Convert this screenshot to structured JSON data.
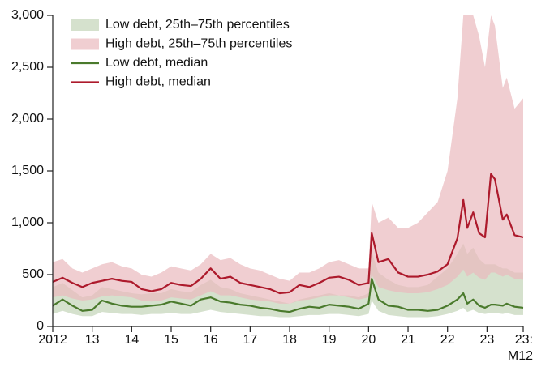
{
  "chart_data": {
    "type": "line",
    "x": [
      2012,
      2012.25,
      2012.5,
      2012.75,
      2013,
      2013.25,
      2013.5,
      2013.75,
      2014,
      2014.25,
      2014.5,
      2014.75,
      2015,
      2015.25,
      2015.5,
      2015.75,
      2016,
      2016.25,
      2016.5,
      2016.75,
      2017,
      2017.25,
      2017.5,
      2017.75,
      2018,
      2018.25,
      2018.5,
      2018.75,
      2019,
      2019.25,
      2019.5,
      2019.75,
      2020,
      2020.08,
      2020.25,
      2020.5,
      2020.75,
      2021,
      2021.25,
      2021.5,
      2021.75,
      2022,
      2022.25,
      2022.4,
      2022.5,
      2022.65,
      2022.8,
      2022.95,
      2023.1,
      2023.2,
      2023.4,
      2023.5,
      2023.7,
      2023.917
    ],
    "xlim": [
      2012,
      2023.917
    ],
    "xticks": [
      {
        "value": 2012,
        "label": "2012"
      },
      {
        "value": 2013,
        "label": "13"
      },
      {
        "value": 2014,
        "label": "14"
      },
      {
        "value": 2015,
        "label": "15"
      },
      {
        "value": 2016,
        "label": "16"
      },
      {
        "value": 2017,
        "label": "17"
      },
      {
        "value": 2018,
        "label": "18"
      },
      {
        "value": 2019,
        "label": "19"
      },
      {
        "value": 2020,
        "label": "20"
      },
      {
        "value": 2021,
        "label": "21"
      },
      {
        "value": 2022,
        "label": "22"
      },
      {
        "value": 2023,
        "label": "23"
      },
      {
        "value": 2023.917,
        "label": "23:\nM12"
      }
    ],
    "ylim": [
      0,
      3000
    ],
    "yticks": [
      0,
      {
        "value": 500,
        "label": "500"
      },
      {
        "value": 1000,
        "label": "1,000"
      },
      {
        "value": 1500,
        "label": "1,500"
      },
      {
        "value": 2000,
        "label": "2,000"
      },
      {
        "value": 2500,
        "label": "2,500"
      },
      {
        "value": 3000,
        "label": "3,000"
      }
    ],
    "legend": "upper left",
    "series": [
      {
        "name": "Low debt, 25th–75th percentiles",
        "type": "band",
        "color": "#d5e1cd",
        "lower": [
          120,
          150,
          120,
          100,
          100,
          140,
          130,
          120,
          120,
          110,
          120,
          120,
          130,
          120,
          120,
          140,
          160,
          140,
          130,
          120,
          110,
          100,
          100,
          90,
          90,
          100,
          110,
          110,
          120,
          120,
          110,
          100,
          120,
          250,
          150,
          110,
          100,
          90,
          90,
          90,
          100,
          120,
          150,
          180,
          140,
          160,
          130,
          120,
          130,
          130,
          120,
          130,
          110,
          110
        ],
        "upper": [
          380,
          420,
          350,
          280,
          300,
          380,
          360,
          340,
          320,
          310,
          320,
          320,
          360,
          340,
          330,
          400,
          450,
          380,
          360,
          320,
          300,
          280,
          260,
          240,
          220,
          260,
          280,
          300,
          320,
          300,
          300,
          280,
          320,
          720,
          520,
          450,
          400,
          380,
          380,
          400,
          480,
          560,
          700,
          800,
          700,
          760,
          650,
          600,
          600,
          600,
          560,
          560,
          520,
          520
        ]
      },
      {
        "name": "High debt, 25th–75th percentiles",
        "type": "band",
        "color": "#e9b9be",
        "lower": [
          280,
          300,
          270,
          250,
          260,
          290,
          300,
          290,
          280,
          250,
          240,
          250,
          280,
          270,
          260,
          300,
          340,
          300,
          300,
          280,
          260,
          250,
          240,
          220,
          220,
          250,
          260,
          280,
          300,
          300,
          280,
          260,
          280,
          500,
          380,
          350,
          330,
          320,
          320,
          330,
          360,
          400,
          480,
          550,
          480,
          520,
          470,
          450,
          520,
          520,
          480,
          500,
          460,
          450
        ],
        "upper": [
          620,
          650,
          560,
          520,
          560,
          600,
          620,
          580,
          560,
          500,
          480,
          520,
          580,
          560,
          540,
          600,
          700,
          640,
          660,
          600,
          560,
          540,
          500,
          460,
          440,
          520,
          520,
          560,
          620,
          640,
          600,
          560,
          560,
          1200,
          1000,
          1050,
          950,
          950,
          1000,
          1100,
          1200,
          1500,
          2200,
          3000,
          3000,
          3000,
          2800,
          2500,
          3000,
          2900,
          2300,
          2400,
          2100,
          2200
        ]
      },
      {
        "name": "Low debt, median",
        "type": "line",
        "color": "#4a7a2c",
        "values": [
          200,
          260,
          200,
          150,
          160,
          250,
          220,
          200,
          190,
          190,
          200,
          210,
          240,
          220,
          200,
          260,
          280,
          240,
          230,
          210,
          200,
          180,
          170,
          150,
          140,
          170,
          190,
          180,
          210,
          200,
          190,
          170,
          220,
          460,
          260,
          200,
          190,
          160,
          160,
          150,
          160,
          200,
          260,
          320,
          220,
          260,
          200,
          180,
          210,
          210,
          200,
          220,
          190,
          180
        ]
      },
      {
        "name": "High debt, median",
        "type": "line",
        "color": "#ad1a2c",
        "values": [
          430,
          470,
          420,
          380,
          420,
          440,
          460,
          440,
          430,
          360,
          340,
          360,
          420,
          400,
          390,
          460,
          560,
          460,
          480,
          420,
          400,
          380,
          360,
          320,
          330,
          400,
          380,
          420,
          470,
          480,
          450,
          400,
          420,
          900,
          620,
          650,
          520,
          480,
          480,
          500,
          530,
          600,
          850,
          1220,
          950,
          1100,
          900,
          860,
          1470,
          1420,
          1030,
          1080,
          880,
          860
        ]
      }
    ]
  }
}
